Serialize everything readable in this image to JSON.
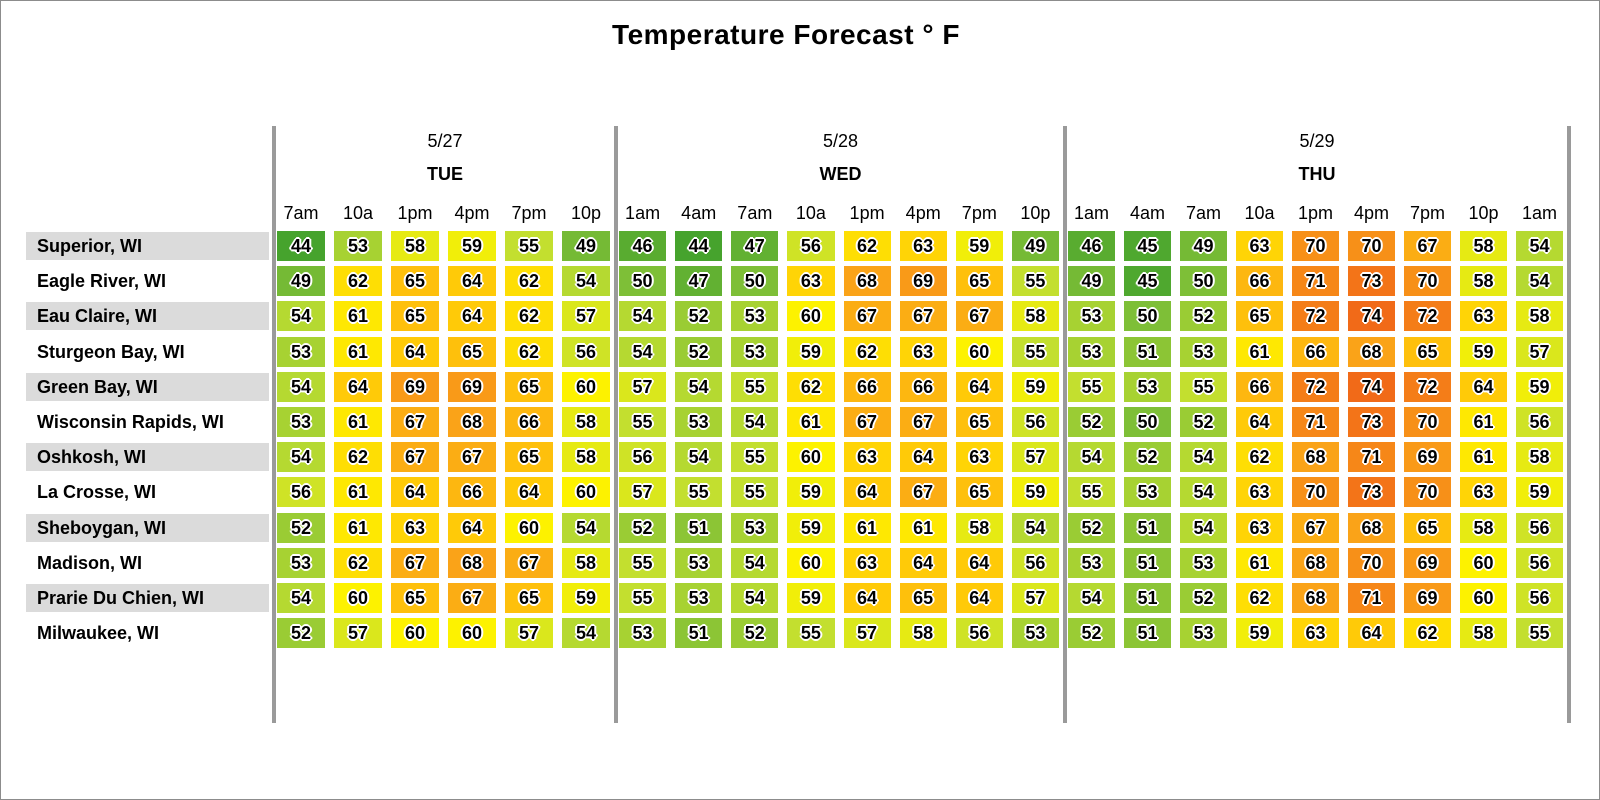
{
  "chart_data": {
    "type": "heatmap",
    "title": "Temperature Forecast ° F",
    "unit": "°F",
    "value_range": [
      44,
      74
    ],
    "legend": "none",
    "grid": "off",
    "days": [
      {
        "date": "5/27",
        "day": "TUE",
        "times": [
          "7am",
          "10a",
          "1pm",
          "4pm",
          "7pm",
          "10p"
        ]
      },
      {
        "date": "5/28",
        "day": "WED",
        "times": [
          "1am",
          "4am",
          "7am",
          "10a",
          "1pm",
          "4pm",
          "7pm",
          "10p"
        ]
      },
      {
        "date": "5/29",
        "day": "THU",
        "times": [
          "1am",
          "4am",
          "7am",
          "10a",
          "1pm",
          "4pm",
          "7pm",
          "10p",
          "1am"
        ]
      }
    ],
    "rows": [
      {
        "city": "Superior, WI",
        "temps": [
          [
            44,
            53,
            58,
            59,
            55,
            49
          ],
          [
            46,
            44,
            47,
            56,
            62,
            63,
            59,
            49
          ],
          [
            46,
            45,
            49,
            63,
            70,
            70,
            67,
            58,
            54
          ]
        ]
      },
      {
        "city": "Eagle River, WI",
        "temps": [
          [
            49,
            62,
            65,
            64,
            62,
            54
          ],
          [
            50,
            47,
            50,
            63,
            68,
            69,
            65,
            55
          ],
          [
            49,
            45,
            50,
            66,
            71,
            73,
            70,
            58,
            54
          ]
        ]
      },
      {
        "city": "Eau Claire, WI",
        "temps": [
          [
            54,
            61,
            65,
            64,
            62,
            57
          ],
          [
            54,
            52,
            53,
            60,
            67,
            67,
            67,
            58
          ],
          [
            53,
            50,
            52,
            65,
            72,
            74,
            72,
            63,
            58
          ]
        ]
      },
      {
        "city": "Sturgeon Bay, WI",
        "temps": [
          [
            53,
            61,
            64,
            65,
            62,
            56
          ],
          [
            54,
            52,
            53,
            59,
            62,
            63,
            60,
            55
          ],
          [
            53,
            51,
            53,
            61,
            66,
            68,
            65,
            59,
            57
          ]
        ]
      },
      {
        "city": "Green Bay, WI",
        "temps": [
          [
            54,
            64,
            69,
            69,
            65,
            60
          ],
          [
            57,
            54,
            55,
            62,
            66,
            66,
            64,
            59
          ],
          [
            55,
            53,
            55,
            66,
            72,
            74,
            72,
            64,
            59
          ]
        ]
      },
      {
        "city": "Wisconsin Rapids, WI",
        "temps": [
          [
            53,
            61,
            67,
            68,
            66,
            58
          ],
          [
            55,
            53,
            54,
            61,
            67,
            67,
            65,
            56
          ],
          [
            52,
            50,
            52,
            64,
            71,
            73,
            70,
            61,
            56
          ]
        ]
      },
      {
        "city": "Oshkosh, WI",
        "temps": [
          [
            54,
            62,
            67,
            67,
            65,
            58
          ],
          [
            56,
            54,
            55,
            60,
            63,
            64,
            63,
            57
          ],
          [
            54,
            52,
            54,
            62,
            68,
            71,
            69,
            61,
            58
          ]
        ]
      },
      {
        "city": "La Crosse, WI",
        "temps": [
          [
            56,
            61,
            64,
            66,
            64,
            60
          ],
          [
            57,
            55,
            55,
            59,
            64,
            67,
            65,
            59
          ],
          [
            55,
            53,
            54,
            63,
            70,
            73,
            70,
            63,
            59
          ]
        ]
      },
      {
        "city": "Sheboygan, WI",
        "temps": [
          [
            52,
            61,
            63,
            64,
            60,
            54
          ],
          [
            52,
            51,
            53,
            59,
            61,
            61,
            58,
            54
          ],
          [
            52,
            51,
            54,
            63,
            67,
            68,
            65,
            58,
            56
          ]
        ]
      },
      {
        "city": "Madison, WI",
        "temps": [
          [
            53,
            62,
            67,
            68,
            67,
            58
          ],
          [
            55,
            53,
            54,
            60,
            63,
            64,
            64,
            56
          ],
          [
            53,
            51,
            53,
            61,
            68,
            70,
            69,
            60,
            56
          ]
        ]
      },
      {
        "city": "Prarie Du Chien, WI",
        "temps": [
          [
            54,
            60,
            65,
            67,
            65,
            59
          ],
          [
            55,
            53,
            54,
            59,
            64,
            65,
            64,
            57
          ],
          [
            54,
            51,
            52,
            62,
            68,
            71,
            69,
            60,
            56
          ]
        ]
      },
      {
        "city": "Milwaukee, WI",
        "temps": [
          [
            52,
            57,
            60,
            60,
            57,
            54
          ],
          [
            53,
            51,
            52,
            55,
            57,
            58,
            56,
            53
          ],
          [
            52,
            51,
            53,
            59,
            63,
            64,
            62,
            58,
            55
          ]
        ]
      }
    ],
    "color_scale": {
      "stops": [
        {
          "value": 44,
          "color": "#46A32D"
        },
        {
          "value": 50,
          "color": "#7EBF37"
        },
        {
          "value": 55,
          "color": "#C3DF2F"
        },
        {
          "value": 60,
          "color": "#FDF200"
        },
        {
          "value": 64,
          "color": "#FFCA08"
        },
        {
          "value": 68,
          "color": "#FAA318"
        },
        {
          "value": 74,
          "color": "#F16A18"
        }
      ]
    },
    "colors": {
      "row_band": "#DBDBDB",
      "separator": "#9A9A9A",
      "text": "#000000"
    }
  }
}
